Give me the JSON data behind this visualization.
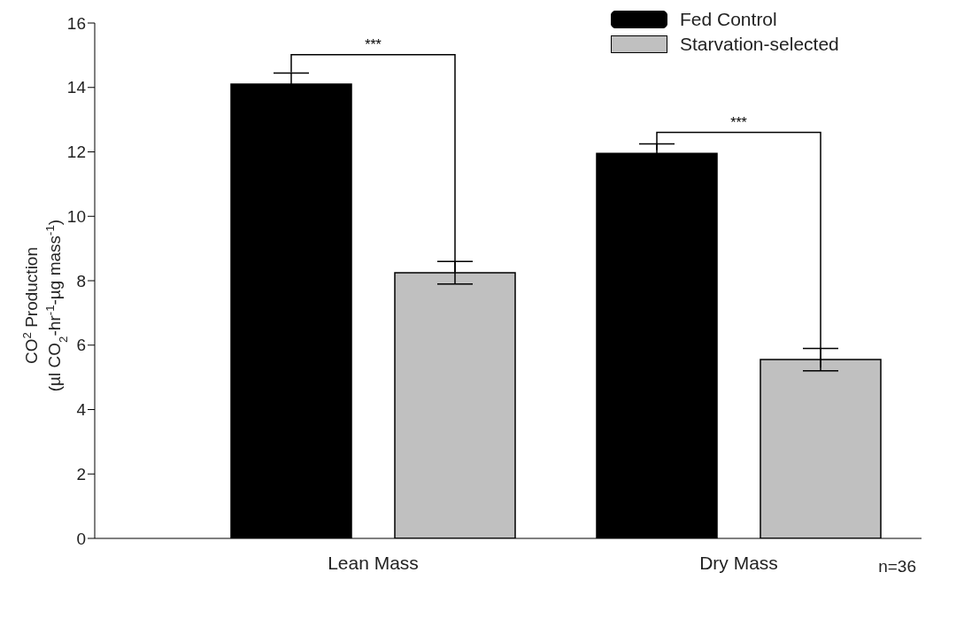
{
  "chart_data": {
    "type": "bar",
    "ylabel": "CO$^{2}$ Production\n(µl CO$_{2}$-hr$^{-1}$-µg mass$^{-1}$)",
    "categories": [
      "Lean Mass",
      "Dry Mass"
    ],
    "series": [
      {
        "name": "Fed Control",
        "color": "#000000",
        "values": [
          14.1,
          11.95
        ],
        "errors": [
          0.35,
          0.3
        ]
      },
      {
        "name": "Starvation-selected",
        "color": "#c0c0c0",
        "values": [
          8.25,
          5.55
        ],
        "errors": [
          0.35,
          0.35
        ]
      }
    ],
    "ylim": [
      0,
      16
    ],
    "yticks": [
      0,
      2,
      4,
      6,
      8,
      10,
      12,
      14,
      16
    ],
    "grid": false,
    "legend": "top right",
    "annotations": [
      "***",
      "***",
      "n=36"
    ]
  }
}
